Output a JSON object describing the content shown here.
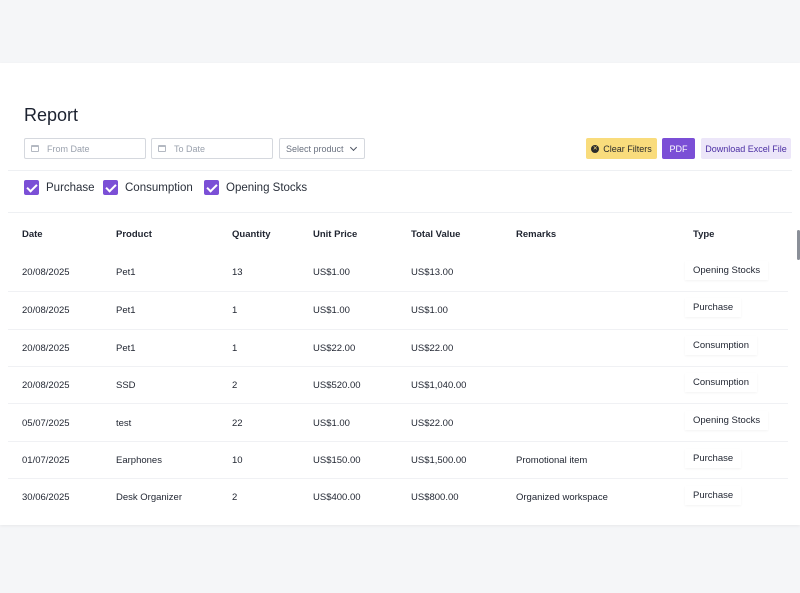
{
  "report": {
    "title": "Report",
    "filters": {
      "from_date_placeholder": "From Date",
      "to_date_placeholder": "To Date",
      "product_placeholder": "Select product"
    },
    "buttons": {
      "clear_filters": "Clear Filters",
      "pdf": "PDF",
      "download_excel": "Download Excel File"
    },
    "checkboxes": [
      {
        "label": "Purchase",
        "checked": true
      },
      {
        "label": "Consumption",
        "checked": true
      },
      {
        "label": "Opening Stocks",
        "checked": true
      }
    ],
    "columns": [
      "Date",
      "Product",
      "Quantity",
      "Unit Price",
      "Total Value",
      "Remarks",
      "Type"
    ],
    "rows": [
      [
        "20/08/2025",
        "Pet1",
        "13",
        "US$1.00",
        "US$13.00",
        "",
        "Opening Stocks"
      ],
      [
        "20/08/2025",
        "Pet1",
        "1",
        "US$1.00",
        "US$1.00",
        "",
        "Purchase"
      ],
      [
        "20/08/2025",
        "Pet1",
        "1",
        "US$22.00",
        "US$22.00",
        "",
        "Consumption"
      ],
      [
        "20/08/2025",
        "SSD",
        "2",
        "US$520.00",
        "US$1,040.00",
        "",
        "Consumption"
      ],
      [
        "05/07/2025",
        "test",
        "22",
        "US$1.00",
        "US$22.00",
        "",
        "Opening Stocks"
      ],
      [
        "01/07/2025",
        "Earphones",
        "10",
        "US$150.00",
        "US$1,500.00",
        "Promotional item",
        "Purchase"
      ],
      [
        "30/06/2025",
        "Desk Organizer",
        "2",
        "US$400.00",
        "US$800.00",
        "Organized workspace",
        "Purchase"
      ]
    ]
  },
  "colors": {
    "accent": "#7b4fd6",
    "clear_button": "#f9dc7c",
    "excel_button_bg": "#ece6f9",
    "page_bg": "#f5f6f8"
  }
}
